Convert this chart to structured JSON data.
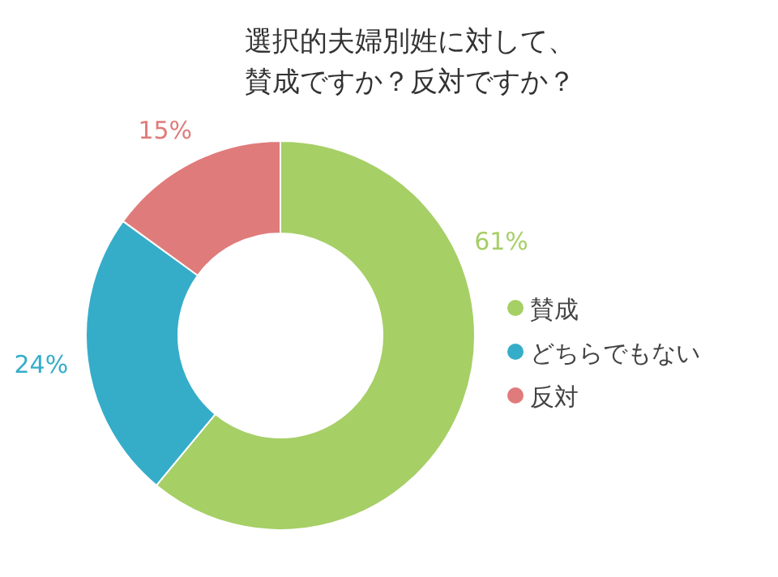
{
  "chart_data": {
    "type": "donut",
    "title": "選択的夫婦別姓に対して、賛成ですか？反対ですか？",
    "categories": [
      "賛成",
      "どちらでもない",
      "反対"
    ],
    "values": [
      61,
      24,
      15
    ],
    "colors": [
      "#a6cf66",
      "#35adc9",
      "#e07b7b"
    ],
    "value_labels": [
      "61%",
      "24%",
      "15%"
    ],
    "legend": "right"
  }
}
